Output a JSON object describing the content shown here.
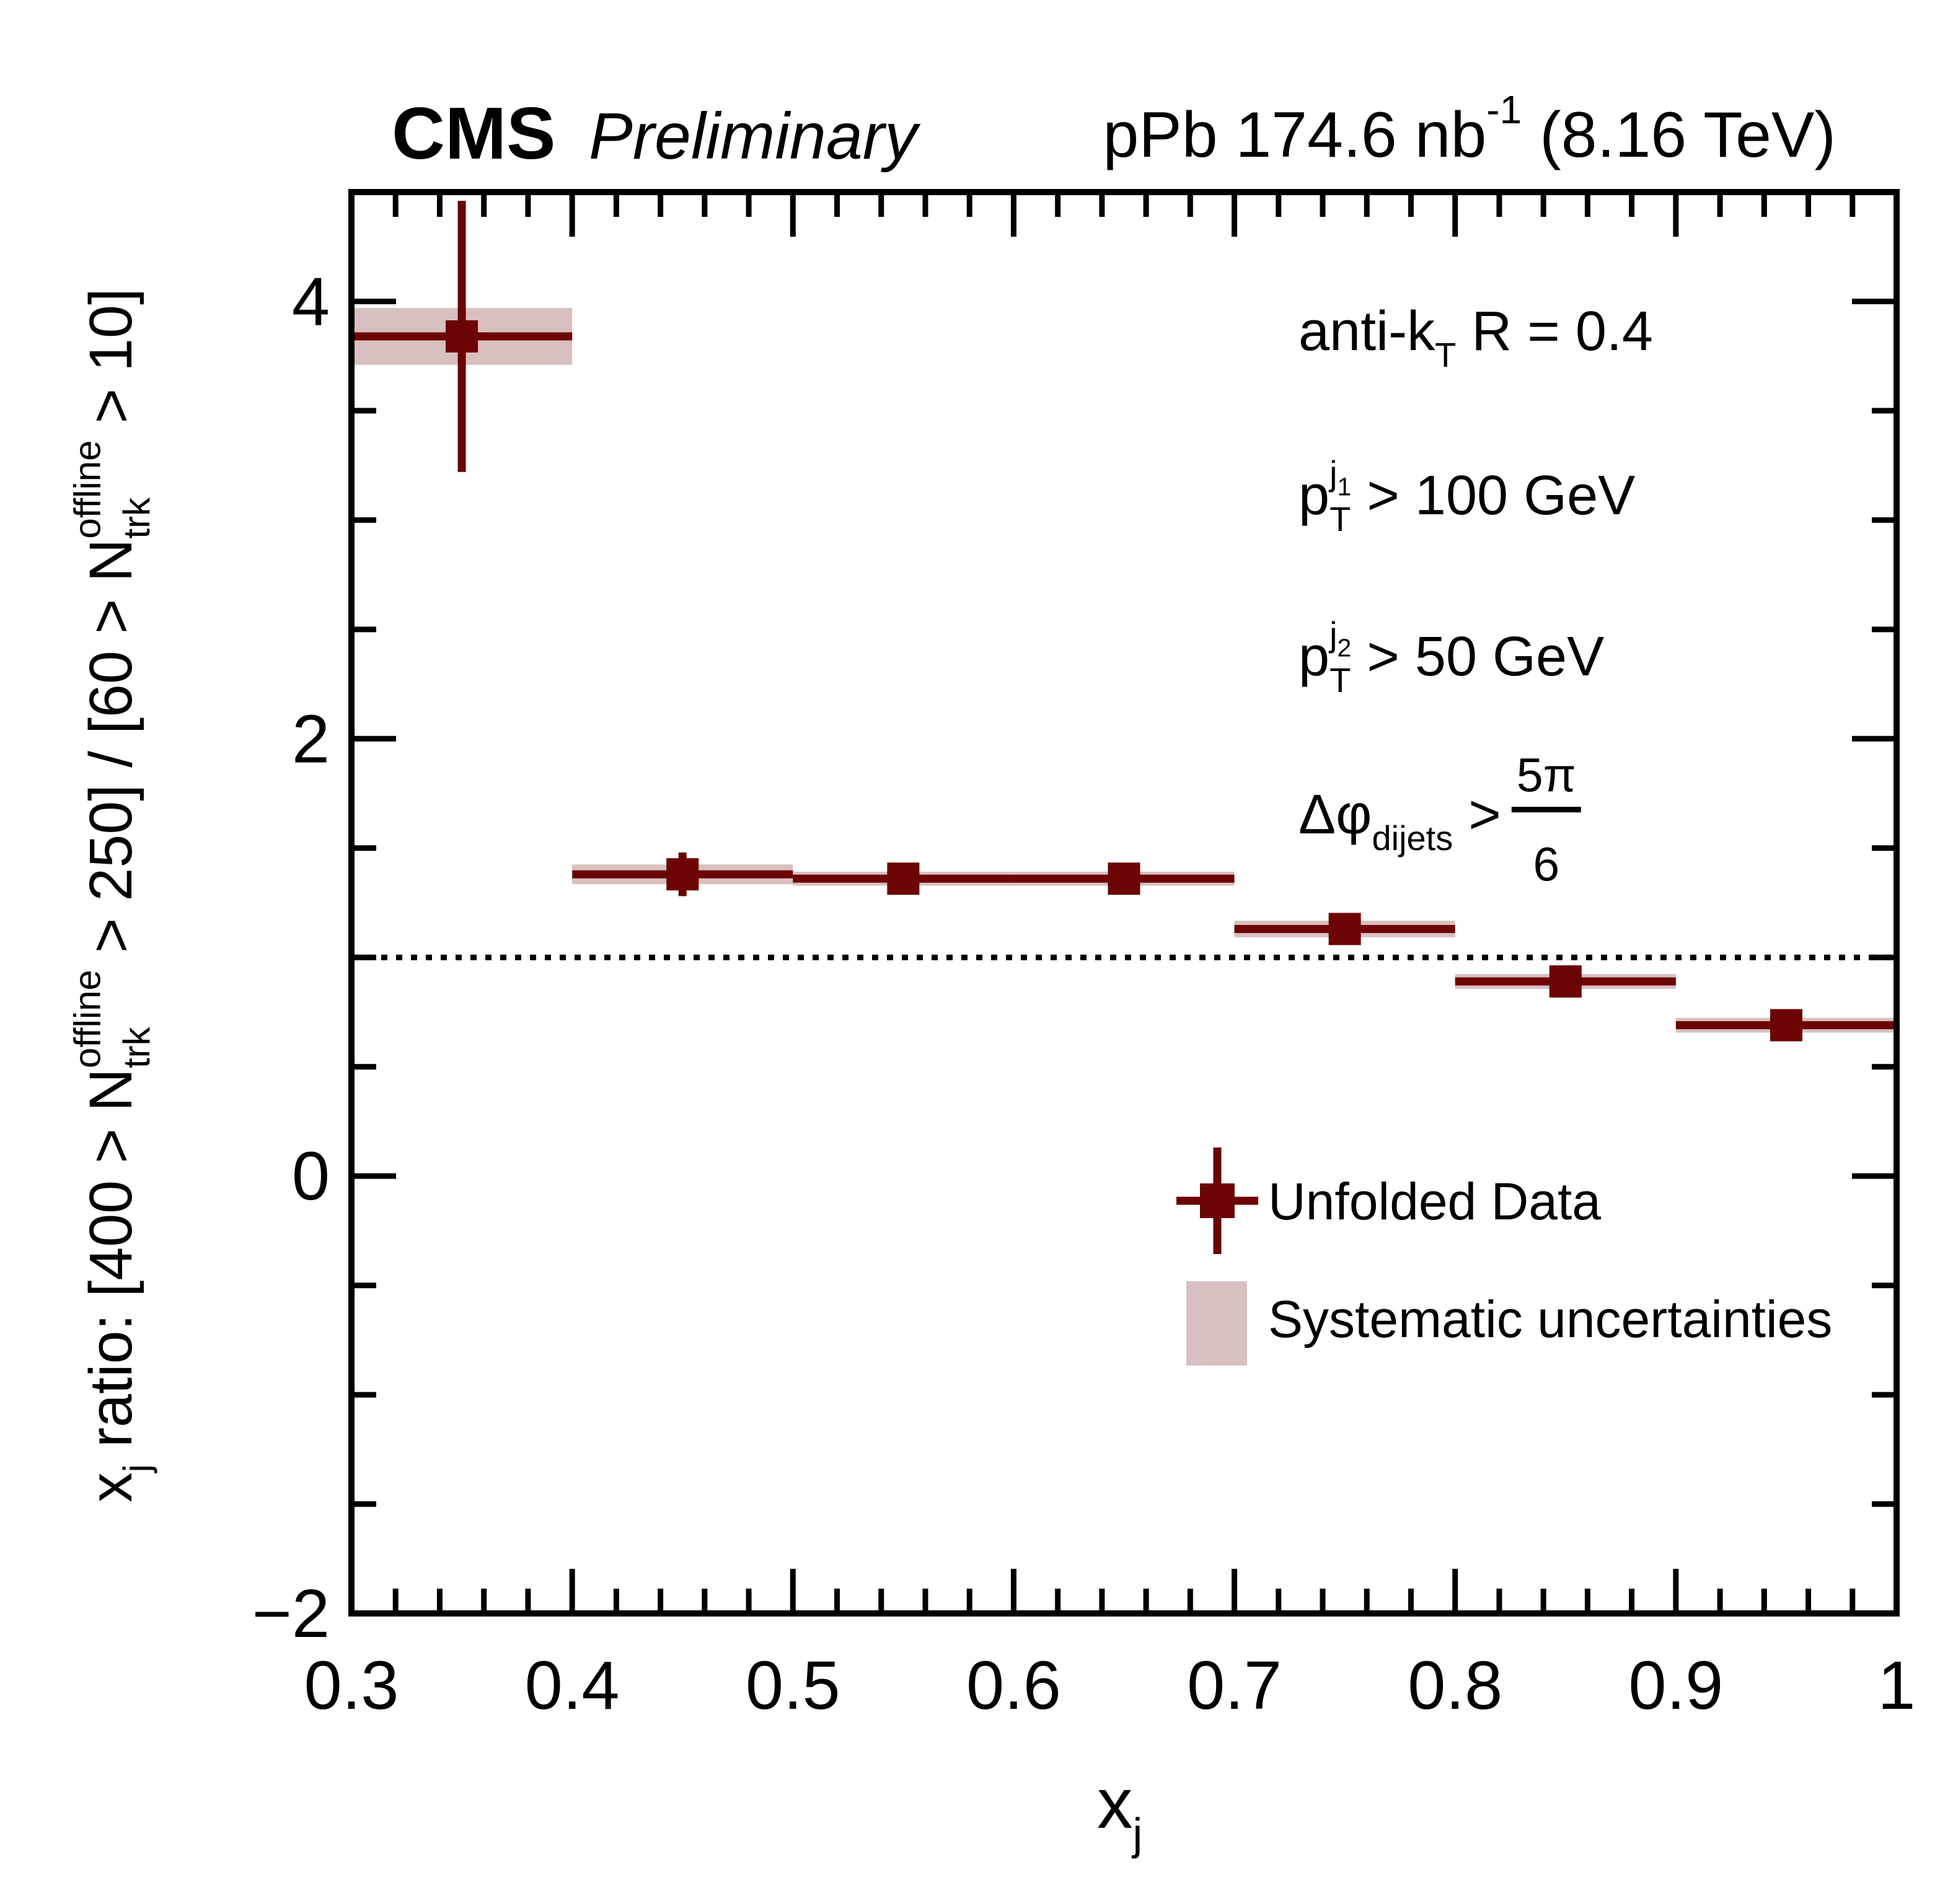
{
  "header": {
    "experiment": "CMS",
    "status": "Preliminary",
    "lumi_tokens": [
      {
        "t": "pPb 174.6 nb"
      },
      {
        "t": "-1",
        "s": "sup"
      },
      {
        "t": " (8.16 TeV)"
      }
    ]
  },
  "annotations": [
    {
      "id": "jet-radius",
      "tokens": [
        {
          "t": "anti-k"
        },
        {
          "t": "T",
          "s": "sub"
        },
        {
          "t": " R = 0.4"
        }
      ]
    },
    {
      "id": "leading-jet-pt",
      "tokens": [
        {
          "t": "p"
        },
        {
          "t": "j",
          "s": "sup"
        },
        {
          "t": "1",
          "s": "supsub"
        },
        {
          "t": "T",
          "s": "subunder"
        },
        {
          "t": " > 100 GeV"
        }
      ]
    },
    {
      "id": "subleading-jet-pt",
      "tokens": [
        {
          "t": "p"
        },
        {
          "t": "j",
          "s": "sup"
        },
        {
          "t": "2",
          "s": "supsub"
        },
        {
          "t": "T",
          "s": "subunder"
        },
        {
          "t": " > 50 GeV"
        }
      ]
    },
    {
      "id": "dphi-cut",
      "tokens": [
        {
          "t": "Δφ"
        },
        {
          "t": "dijets",
          "s": "sub"
        },
        {
          "t": " > "
        },
        {
          "s": "frac",
          "num": "5π",
          "den": "6"
        }
      ]
    }
  ],
  "legend": {
    "items": [
      {
        "label": "Unfolded Data",
        "type": "marker"
      },
      {
        "label": "Systematic uncertainties",
        "type": "band"
      }
    ]
  },
  "chart_data": {
    "type": "scatter",
    "title": "",
    "xlabel_tokens": [
      {
        "t": "x"
      },
      {
        "t": "j",
        "s": "sub"
      }
    ],
    "ylabel_tokens": [
      {
        "t": "x"
      },
      {
        "t": "j",
        "s": "sub"
      },
      {
        "t": " ratio: [400 > N"
      },
      {
        "t": "offline",
        "s": "sup"
      },
      {
        "t": "trk",
        "s": "subunder"
      },
      {
        "t": " > 250] / [60 > N"
      },
      {
        "t": "offline",
        "s": "sup"
      },
      {
        "t": "trk",
        "s": "subunder"
      },
      {
        "t": " > 10]"
      }
    ],
    "xlim": [
      0.3,
      1.0
    ],
    "ylim": [
      -2,
      4.5
    ],
    "x_major_ticks": [
      0.3,
      0.4,
      0.5,
      0.6,
      0.7,
      0.8,
      0.9,
      1.0
    ],
    "x_tick_labels": [
      "0.3",
      "0.4",
      "0.5",
      "0.6",
      "0.7",
      "0.8",
      "0.9",
      "1"
    ],
    "x_minor_step": 0.02,
    "y_major_ticks": [
      -2,
      0,
      2,
      4
    ],
    "y_tick_labels": [
      "−2",
      "0",
      "2",
      "4"
    ],
    "y_minor_step": 0.5,
    "reference_line_y": 1,
    "grid": false,
    "legend_position": "lower right",
    "series": [
      {
        "name": "Unfolded Data",
        "bin_edges": [
          0.3,
          0.4,
          0.5,
          0.6,
          0.7,
          0.8,
          0.9,
          1.0
        ],
        "x": [
          0.35,
          0.45,
          0.55,
          0.65,
          0.75,
          0.85,
          0.95
        ],
        "y": [
          3.84,
          1.38,
          1.36,
          1.36,
          1.13,
          0.89,
          0.69
        ],
        "stat_err": [
          0.62,
          0.1,
          0.05,
          0.05,
          0.05,
          0.05,
          0.05
        ],
        "syst_err": [
          0.13,
          0.045,
          0.032,
          0.032,
          0.038,
          0.034,
          0.034
        ]
      }
    ],
    "colors": {
      "data": "#6b0403",
      "band": "#d8bfc0",
      "axis": "#000000",
      "background": "#ffffff"
    }
  }
}
